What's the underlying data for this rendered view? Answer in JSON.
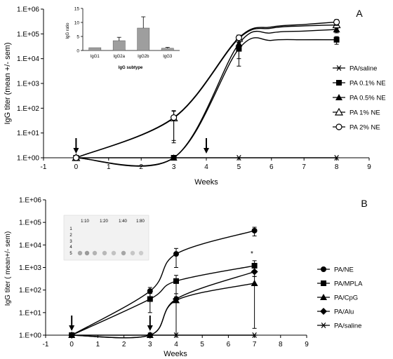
{
  "chart_data": [
    {
      "panel_label": "A",
      "type": "line",
      "xlabel": "Weeks",
      "ylabel": "IgG titer (mean +/- sem)",
      "x_ticks": [
        "-1",
        "0",
        "1",
        "2",
        "3",
        "4",
        "5",
        "6",
        "7",
        "8",
        "9"
      ],
      "y_ticks": [
        "1.E+00",
        "1.E+01",
        "1.E+02",
        "1.E+03",
        "1.E+04",
        "1.E+05",
        "1.E+06"
      ],
      "xlim": [
        -1,
        9
      ],
      "ylim_log10": [
        0,
        6
      ],
      "arrows_weeks": [
        0,
        4
      ],
      "series": [
        {
          "name": "PA/saline",
          "marker": "asterisk",
          "x": [
            0,
            3,
            5,
            8
          ],
          "y": [
            1,
            1,
            1,
            1
          ]
        },
        {
          "name": "PA 0.1% NE",
          "marker": "square",
          "x": [
            0,
            3,
            5,
            6,
            7,
            8
          ],
          "y": [
            1,
            1,
            25000,
            55000,
            58000,
            58000
          ],
          "err": [
            0,
            0,
            20000,
            0,
            0,
            20000
          ]
        },
        {
          "name": "PA 0.5% NE",
          "marker": "triangle",
          "x": [
            0,
            3,
            5,
            6,
            7,
            8
          ],
          "y": [
            1,
            1,
            40000,
            110000,
            130000,
            150000
          ],
          "err": [
            0,
            0,
            30000,
            0,
            0,
            40000
          ]
        },
        {
          "name": "PA 1% NE",
          "marker": "triangle-open",
          "x": [
            0,
            3,
            5,
            6,
            7,
            8
          ],
          "y": [
            1,
            40,
            65000,
            170000,
            210000,
            230000
          ],
          "err": [
            0,
            35,
            20000,
            0,
            0,
            60000
          ]
        },
        {
          "name": "PA 2% NE",
          "marker": "circle-open",
          "x": [
            0,
            3,
            5,
            6,
            7,
            8
          ],
          "y": [
            1,
            42,
            70000,
            190000,
            240000,
            300000
          ],
          "err": [
            0,
            38,
            20000,
            0,
            0,
            80000
          ]
        }
      ],
      "inset": {
        "type": "bar",
        "ylabel": "IgG ratio",
        "xlabel": "IgG subtype",
        "categories": [
          "IgG1",
          "IgG2a",
          "IgG2b",
          "IgG3"
        ],
        "values": [
          1,
          3.5,
          8,
          0.8
        ],
        "errors": [
          0,
          1.2,
          4,
          0.3
        ],
        "y_ticks": [
          "0",
          "5",
          "10",
          "15"
        ],
        "ylim": [
          0,
          15
        ]
      }
    },
    {
      "panel_label": "B",
      "type": "line",
      "xlabel": "Weeks",
      "ylabel": "IgG titer ( mean+/- sem)",
      "x_ticks": [
        "-1",
        "0",
        "1",
        "2",
        "3",
        "4",
        "5",
        "6",
        "7",
        "8",
        "9"
      ],
      "y_ticks": [
        "1.E+00",
        "1.E+01",
        "1.E+02",
        "1.E+03",
        "1.E+04",
        "1.E+05",
        "1.E+06"
      ],
      "xlim": [
        -1,
        9
      ],
      "ylim_log10": [
        0,
        6
      ],
      "arrows_weeks": [
        0,
        3
      ],
      "annotation": "*",
      "series": [
        {
          "name": "PA/NE",
          "marker": "circle",
          "x": [
            0,
            3,
            4,
            7
          ],
          "y": [
            1,
            90,
            4000,
            43000
          ],
          "err": [
            0,
            40,
            3000,
            18000
          ]
        },
        {
          "name": "PA/MPLA",
          "marker": "square",
          "x": [
            0,
            3,
            4,
            7
          ],
          "y": [
            1,
            40,
            250,
            1200
          ],
          "err": [
            0,
            30,
            200,
            800
          ]
        },
        {
          "name": "PA/CpG",
          "marker": "triangle",
          "x": [
            0,
            3,
            4,
            7
          ],
          "y": [
            1,
            1,
            35,
            200
          ],
          "err": [
            0,
            0,
            34,
            198
          ]
        },
        {
          "name": "PA/Alu",
          "marker": "diamond",
          "x": [
            0,
            3,
            4,
            7
          ],
          "y": [
            1,
            1,
            40,
            650
          ],
          "err": [
            0,
            0,
            0,
            0
          ]
        },
        {
          "name": "PA/saline",
          "marker": "asterisk",
          "x": [
            0,
            3,
            4,
            7
          ],
          "y": [
            1,
            1,
            1,
            1
          ]
        }
      ],
      "inset": {
        "type": "dot-blot",
        "columns": [
          "1:10",
          "1:20",
          "1:40",
          "1:80"
        ],
        "rows": [
          "1",
          "2",
          "3",
          "4",
          "5"
        ]
      }
    }
  ]
}
